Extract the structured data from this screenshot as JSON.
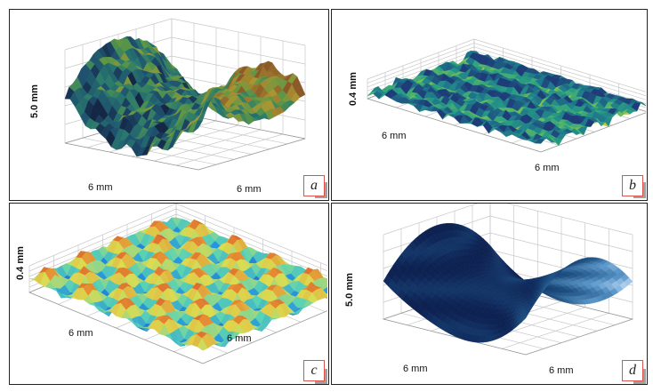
{
  "panels": [
    {
      "id": "a",
      "tag": "a",
      "vertical_label": "5.0 mm",
      "axis_labels": [
        "6 mm",
        "6 mm"
      ],
      "colormap": "parula-dark"
    },
    {
      "id": "b",
      "tag": "b",
      "vertical_label": "0.4 mm",
      "axis_labels": [
        "6 mm",
        "6 mm"
      ],
      "colormap": "parula"
    },
    {
      "id": "c",
      "tag": "c",
      "vertical_label": "0.4 mm",
      "axis_labels": [
        "6 mm",
        "6 mm"
      ],
      "colormap": "jet"
    },
    {
      "id": "d",
      "tag": "d",
      "vertical_label": "5.0 mm",
      "axis_labels": [
        "6 mm",
        "6 mm"
      ],
      "colormap": "navy"
    }
  ],
  "colors": {
    "border": "#222222",
    "tag_border": "#d9534f",
    "grid": "#c8c8c8"
  }
}
